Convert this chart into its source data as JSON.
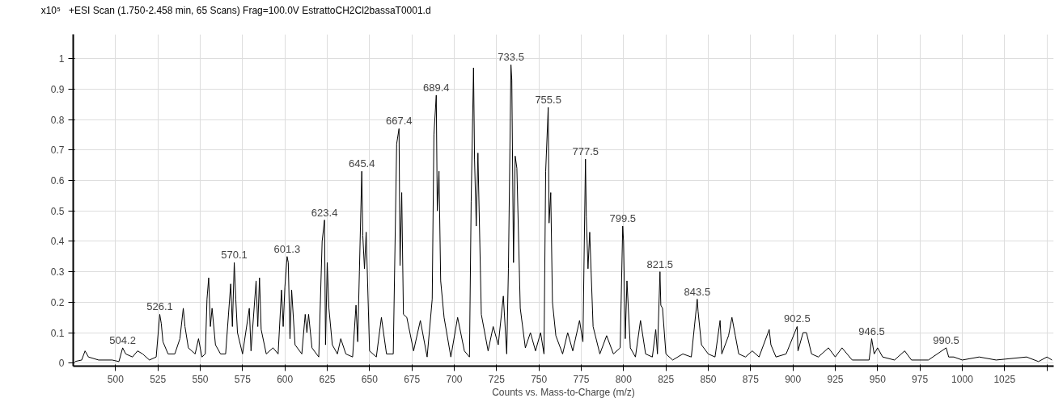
{
  "chart_data": {
    "type": "line",
    "title": "+ESI Scan (1.750-2.458 min, 65 Scans) Frag=100.0V EstrattoCH2Cl2bassaT0001.d",
    "xlabel": "Counts vs. Mass-to-Charge (m/z)",
    "ylabel": "x10⁵",
    "series": [
      {
        "color": "#000000",
        "x": [
          476,
          480,
          482,
          484,
          490,
          498,
          502,
          504.2,
          506,
          510,
          513,
          516,
          520,
          524,
          526.1,
          527,
          528,
          531,
          535,
          538,
          540,
          541,
          543,
          547,
          549,
          551,
          553,
          554,
          555,
          556,
          557,
          559,
          562,
          565,
          568,
          569,
          570.1,
          571,
          572,
          575,
          579,
          580,
          583,
          584,
          585,
          586,
          589,
          593,
          596,
          598,
          599,
          600,
          601.3,
          602,
          603,
          604,
          606,
          610,
          612,
          613,
          614,
          616,
          620,
          622,
          623.4,
          624,
          625,
          626,
          628,
          631,
          633,
          636,
          640,
          642,
          643,
          644,
          645.4,
          646,
          647,
          648,
          650,
          654,
          657,
          660,
          664,
          666,
          667.4,
          668,
          669,
          670,
          672,
          676,
          680,
          684,
          687,
          688,
          689.4,
          690,
          691,
          692,
          694,
          698,
          702,
          706,
          709,
          710,
          711.4,
          712,
          713,
          714,
          716,
          720,
          723,
          726,
          729,
          731,
          732,
          733.5,
          734,
          735,
          736,
          737,
          739,
          742,
          745,
          748,
          751,
          753,
          754,
          755.5,
          756,
          757,
          758,
          760,
          764,
          767,
          770,
          774,
          776,
          777.5,
          778,
          779,
          780,
          782,
          786,
          790,
          794,
          798,
          799.5,
          800,
          801,
          802,
          804,
          807,
          810,
          813,
          817,
          819,
          820,
          821.5,
          822,
          823,
          825,
          829,
          835,
          840,
          843.5,
          844,
          846,
          850,
          854,
          857,
          858,
          862,
          864,
          866,
          868,
          872,
          876,
          880,
          886,
          887,
          890,
          896,
          902.5,
          903,
          906,
          908,
          911,
          915,
          921,
          925,
          929,
          935,
          945,
          946.5,
          948,
          950,
          953,
          960,
          966,
          970,
          980,
          990.5,
          992,
          995,
          1000,
          1010,
          1020,
          1038,
          1045,
          1050,
          1053
        ],
        "values": [
          0.005,
          0.01,
          0.04,
          0.02,
          0.01,
          0.01,
          0.005,
          0.05,
          0.03,
          0.02,
          0.04,
          0.03,
          0.01,
          0.02,
          0.16,
          0.13,
          0.07,
          0.03,
          0.03,
          0.08,
          0.18,
          0.12,
          0.05,
          0.03,
          0.08,
          0.02,
          0.03,
          0.21,
          0.28,
          0.12,
          0.18,
          0.06,
          0.03,
          0.03,
          0.26,
          0.12,
          0.33,
          0.21,
          0.1,
          0.03,
          0.18,
          0.04,
          0.27,
          0.12,
          0.28,
          0.11,
          0.03,
          0.05,
          0.03,
          0.24,
          0.12,
          0.25,
          0.35,
          0.33,
          0.08,
          0.24,
          0.06,
          0.03,
          0.16,
          0.1,
          0.16,
          0.05,
          0.02,
          0.4,
          0.47,
          0.06,
          0.33,
          0.18,
          0.06,
          0.03,
          0.08,
          0.03,
          0.02,
          0.19,
          0.07,
          0.3,
          0.63,
          0.42,
          0.31,
          0.43,
          0.04,
          0.02,
          0.15,
          0.03,
          0.03,
          0.72,
          0.77,
          0.32,
          0.56,
          0.16,
          0.15,
          0.04,
          0.14,
          0.02,
          0.21,
          0.75,
          0.88,
          0.5,
          0.63,
          0.27,
          0.15,
          0.02,
          0.15,
          0.04,
          0.02,
          0.53,
          0.97,
          0.67,
          0.45,
          0.69,
          0.16,
          0.04,
          0.12,
          0.06,
          0.22,
          0.03,
          0.31,
          0.98,
          0.93,
          0.33,
          0.68,
          0.64,
          0.18,
          0.05,
          0.1,
          0.04,
          0.1,
          0.03,
          0.63,
          0.84,
          0.46,
          0.56,
          0.2,
          0.09,
          0.03,
          0.1,
          0.04,
          0.14,
          0.07,
          0.67,
          0.48,
          0.31,
          0.43,
          0.12,
          0.03,
          0.09,
          0.03,
          0.05,
          0.45,
          0.4,
          0.08,
          0.27,
          0.05,
          0.02,
          0.14,
          0.03,
          0.02,
          0.11,
          0.03,
          0.3,
          0.19,
          0.18,
          0.03,
          0.01,
          0.03,
          0.02,
          0.21,
          0.17,
          0.06,
          0.03,
          0.02,
          0.14,
          0.03,
          0.09,
          0.15,
          0.09,
          0.03,
          0.02,
          0.04,
          0.02,
          0.11,
          0.06,
          0.02,
          0.03,
          0.12,
          0.04,
          0.1,
          0.1,
          0.03,
          0.02,
          0.05,
          0.02,
          0.05,
          0.01,
          0.01,
          0.08,
          0.03,
          0.05,
          0.02,
          0.01,
          0.04,
          0.01,
          0.01,
          0.05,
          0.02,
          0.02,
          0.01,
          0.02,
          0.01,
          0.02,
          0.005,
          0.02,
          0.01
        ]
      }
    ],
    "xlim": [
      475,
      1054
    ],
    "ylim": [
      -0.01,
      1.08
    ],
    "xticks": [
      500,
      525,
      550,
      575,
      600,
      625,
      650,
      675,
      700,
      725,
      750,
      775,
      800,
      825,
      850,
      875,
      900,
      925,
      950,
      975,
      1000,
      1025,
      {
        "value": 1050,
        "label": null
      }
    ],
    "yticks": [
      0,
      0.1,
      0.2,
      0.3,
      0.4,
      0.5,
      0.6,
      0.7,
      0.8,
      0.9,
      1
    ],
    "grid": true,
    "marker": "none",
    "line_style": "solid",
    "annotations": [
      {
        "text": "504.2",
        "x": 504.2,
        "y": 0.05
      },
      {
        "text": "526.1",
        "x": 526.1,
        "y": 0.16
      },
      {
        "text": "570.1",
        "x": 570.1,
        "y": 0.33
      },
      {
        "text": "601.3",
        "x": 601.3,
        "y": 0.35
      },
      {
        "text": "623.4",
        "x": 623.4,
        "y": 0.47
      },
      {
        "text": "645.4",
        "x": 645.4,
        "y": 0.63
      },
      {
        "text": "667.4",
        "x": 667.4,
        "y": 0.77
      },
      {
        "text": "689.4",
        "x": 689.4,
        "y": 0.88
      },
      {
        "text": "733.5",
        "x": 733.5,
        "y": 0.98
      },
      {
        "text": "755.5",
        "x": 755.5,
        "y": 0.84
      },
      {
        "text": "777.5",
        "x": 777.5,
        "y": 0.67
      },
      {
        "text": "799.5",
        "x": 799.5,
        "y": 0.45
      },
      {
        "text": "821.5",
        "x": 821.5,
        "y": 0.3
      },
      {
        "text": "843.5",
        "x": 843.5,
        "y": 0.21
      },
      {
        "text": "902.5",
        "x": 902.5,
        "y": 0.12
      },
      {
        "text": "946.5",
        "x": 946.5,
        "y": 0.08
      },
      {
        "text": "990.5",
        "x": 990.5,
        "y": 0.05
      }
    ]
  }
}
